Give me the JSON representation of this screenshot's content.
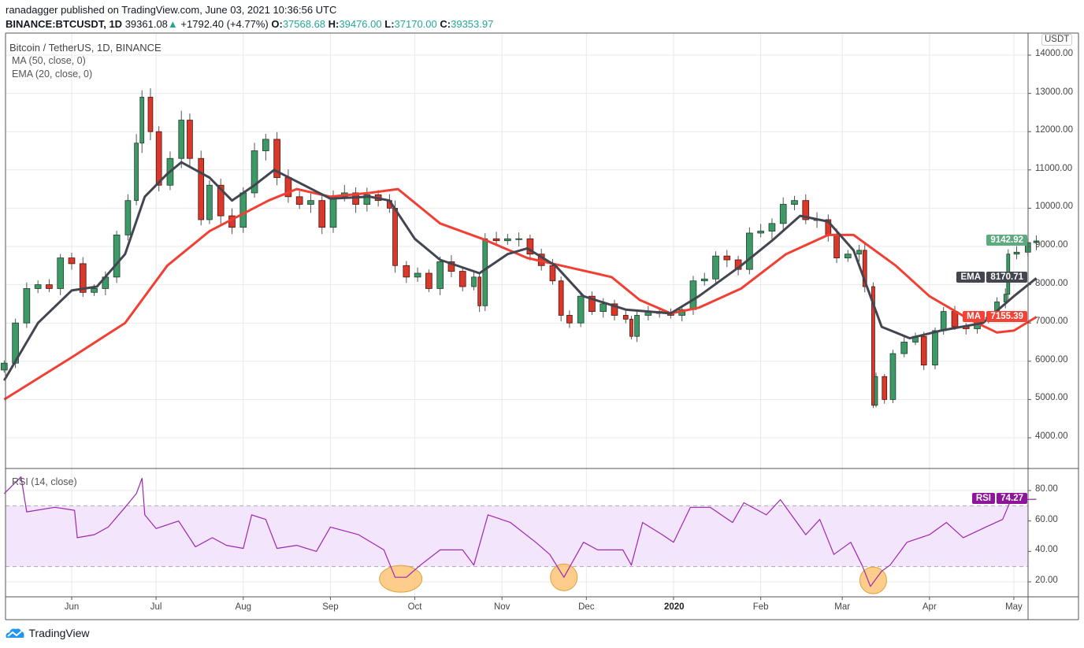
{
  "header": {
    "publisher_line": "ranadagger published on TradingView.com, June 03, 2021 10:36:56 UTC",
    "symbol": "BINANCE:BTCUSDT, 1D",
    "last": "39361.08",
    "change": "+1792.40 (+4.77%)",
    "open_label": "O:",
    "open": "37568.68",
    "high_label": "H:",
    "high": "39476.00",
    "low_label": "L:",
    "low": "37170.00",
    "close_label": "C:",
    "close": "39353.97",
    "up_icon": "triangle-up-icon"
  },
  "legend": {
    "title": "Bitcoin / TetherUS, 1D, BINANCE",
    "ma": "MA (50, close, 0)",
    "ema": "EMA (20, close, 0)",
    "rsi": "RSI (14, close)"
  },
  "price_axis": {
    "currency": "USDT",
    "ticks": [
      "14000.00",
      "13000.00",
      "12000.00",
      "11000.00",
      "10000.00",
      "9000.00",
      "8000.00",
      "7000.00",
      "6000.00",
      "5000.00",
      "4000.00"
    ]
  },
  "rsi_axis": {
    "ticks": [
      "80.00",
      "60.00",
      "40.00",
      "20.00"
    ]
  },
  "time_axis": {
    "labels": [
      {
        "date": "2019-06-01",
        "text": "Jun"
      },
      {
        "date": "2019-07-01",
        "text": "Jul"
      },
      {
        "date": "2019-08-01",
        "text": "Aug"
      },
      {
        "date": "2019-09-01",
        "text": "Sep"
      },
      {
        "date": "2019-10-01",
        "text": "Oct"
      },
      {
        "date": "2019-11-01",
        "text": "Nov"
      },
      {
        "date": "2019-12-01",
        "text": "Dec"
      },
      {
        "date": "2020-01-01",
        "text": "2020",
        "bold": true
      },
      {
        "date": "2020-02-01",
        "text": "Feb"
      },
      {
        "date": "2020-03-01",
        "text": "Mar"
      },
      {
        "date": "2020-04-01",
        "text": "Apr"
      },
      {
        "date": "2020-05-01",
        "text": "May"
      }
    ]
  },
  "tags": {
    "price": {
      "value": "9142.92",
      "color": "#5fa981"
    },
    "ema": {
      "label": "EMA",
      "value": "8170.71",
      "color": "#434651"
    },
    "ma": {
      "label": "MA",
      "value": "7155.39",
      "color": "#f44336"
    },
    "rsi": {
      "label": "RSI",
      "value": "74.27",
      "color": "#8e1599"
    }
  },
  "footer": {
    "brand": "TradingView"
  },
  "colors": {
    "up": "#3d9a67",
    "down": "#d9382a",
    "ema": "#434651",
    "ma": "#f23f34",
    "rsi": "#9c27b0",
    "rsi_band": "#f3e5fc",
    "highlight": "#ffc477"
  },
  "chart_data": {
    "type": "candlestick",
    "price_range": [
      3400,
      14500
    ],
    "rsi_range": [
      10,
      90
    ],
    "rsi_band": [
      30,
      70
    ],
    "grid": true,
    "closes": [
      [
        "2019-05-08",
        5950
      ],
      [
        "2019-05-12",
        7000
      ],
      [
        "2019-05-16",
        7900
      ],
      [
        "2019-05-20",
        8000
      ],
      [
        "2019-05-24",
        7900
      ],
      [
        "2019-05-28",
        8700
      ],
      [
        "2019-06-01",
        8550
      ],
      [
        "2019-06-05",
        7800
      ],
      [
        "2019-06-09",
        7900
      ],
      [
        "2019-06-13",
        8200
      ],
      [
        "2019-06-17",
        9300
      ],
      [
        "2019-06-21",
        10200
      ],
      [
        "2019-06-24",
        11700
      ],
      [
        "2019-06-26",
        12900
      ],
      [
        "2019-06-29",
        12000
      ],
      [
        "2019-07-02",
        10600
      ],
      [
        "2019-07-06",
        11300
      ],
      [
        "2019-07-10",
        12300
      ],
      [
        "2019-07-13",
        11300
      ],
      [
        "2019-07-17",
        9700
      ],
      [
        "2019-07-20",
        10600
      ],
      [
        "2019-07-24",
        9800
      ],
      [
        "2019-07-28",
        9500
      ],
      [
        "2019-08-01",
        10400
      ],
      [
        "2019-08-05",
        11500
      ],
      [
        "2019-08-09",
        11800
      ],
      [
        "2019-08-13",
        10800
      ],
      [
        "2019-08-17",
        10300
      ],
      [
        "2019-08-21",
        10100
      ],
      [
        "2019-08-25",
        10200
      ],
      [
        "2019-08-29",
        9500
      ],
      [
        "2019-09-02",
        10300
      ],
      [
        "2019-09-06",
        10400
      ],
      [
        "2019-09-10",
        10100
      ],
      [
        "2019-09-14",
        10350
      ],
      [
        "2019-09-18",
        10200
      ],
      [
        "2019-09-22",
        10000
      ],
      [
        "2019-09-24",
        8500
      ],
      [
        "2019-09-28",
        8200
      ],
      [
        "2019-10-02",
        8300
      ],
      [
        "2019-10-06",
        7900
      ],
      [
        "2019-10-10",
        8600
      ],
      [
        "2019-10-14",
        8350
      ],
      [
        "2019-10-18",
        7950
      ],
      [
        "2019-10-22",
        8200
      ],
      [
        "2019-10-24",
        7450
      ],
      [
        "2019-10-26",
        9200
      ],
      [
        "2019-10-30",
        9150
      ],
      [
        "2019-11-03",
        9200
      ],
      [
        "2019-11-07",
        9200
      ],
      [
        "2019-11-11",
        8800
      ],
      [
        "2019-11-15",
        8500
      ],
      [
        "2019-11-19",
        8100
      ],
      [
        "2019-11-22",
        7200
      ],
      [
        "2019-11-25",
        7000
      ],
      [
        "2019-11-29",
        7700
      ],
      [
        "2019-12-03",
        7300
      ],
      [
        "2019-12-07",
        7500
      ],
      [
        "2019-12-11",
        7200
      ],
      [
        "2019-12-15",
        7100
      ],
      [
        "2019-12-17",
        6650
      ],
      [
        "2019-12-19",
        7200
      ],
      [
        "2019-12-23",
        7300
      ],
      [
        "2019-12-27",
        7250
      ],
      [
        "2019-12-31",
        7200
      ],
      [
        "2020-01-04",
        7350
      ],
      [
        "2020-01-08",
        8100
      ],
      [
        "2020-01-12",
        8150
      ],
      [
        "2020-01-16",
        8750
      ],
      [
        "2020-01-20",
        8650
      ],
      [
        "2020-01-24",
        8400
      ],
      [
        "2020-01-28",
        9350
      ],
      [
        "2020-02-01",
        9400
      ],
      [
        "2020-02-05",
        9600
      ],
      [
        "2020-02-09",
        10100
      ],
      [
        "2020-02-13",
        10200
      ],
      [
        "2020-02-17",
        9700
      ],
      [
        "2020-02-21",
        9700
      ],
      [
        "2020-02-25",
        9300
      ],
      [
        "2020-02-28",
        8700
      ],
      [
        "2020-03-03",
        8800
      ],
      [
        "2020-03-07",
        8900
      ],
      [
        "2020-03-09",
        7950
      ],
      [
        "2020-03-12",
        4850
      ],
      [
        "2020-03-13",
        5600
      ],
      [
        "2020-03-16",
        5000
      ],
      [
        "2020-03-19",
        6200
      ],
      [
        "2020-03-23",
        6500
      ],
      [
        "2020-03-27",
        6650
      ],
      [
        "2020-03-30",
        5900
      ],
      [
        "2020-04-03",
        6800
      ],
      [
        "2020-04-06",
        7300
      ],
      [
        "2020-04-10",
        6900
      ],
      [
        "2020-04-14",
        6850
      ],
      [
        "2020-04-18",
        7100
      ],
      [
        "2020-04-22",
        7150
      ],
      [
        "2020-04-25",
        7550
      ],
      [
        "2020-04-28",
        7750
      ],
      [
        "2020-04-29",
        8800
      ],
      [
        "2020-05-02",
        8850
      ],
      [
        "2020-05-06",
        9100
      ],
      [
        "2020-05-09",
        9142.92
      ]
    ],
    "ema20": [
      [
        "2019-05-08",
        5500
      ],
      [
        "2019-05-20",
        7000
      ],
      [
        "2019-06-01",
        7850
      ],
      [
        "2019-06-10",
        7950
      ],
      [
        "2019-06-20",
        8800
      ],
      [
        "2019-06-27",
        10300
      ],
      [
        "2019-07-05",
        10900
      ],
      [
        "2019-07-10",
        11200
      ],
      [
        "2019-07-20",
        10800
      ],
      [
        "2019-07-28",
        10200
      ],
      [
        "2019-08-05",
        10600
      ],
      [
        "2019-08-12",
        11000
      ],
      [
        "2019-08-20",
        10700
      ],
      [
        "2019-09-01",
        10250
      ],
      [
        "2019-09-15",
        10300
      ],
      [
        "2019-09-22",
        10200
      ],
      [
        "2019-10-01",
        9200
      ],
      [
        "2019-10-10",
        8650
      ],
      [
        "2019-10-24",
        8300
      ],
      [
        "2019-11-03",
        8800
      ],
      [
        "2019-11-10",
        8950
      ],
      [
        "2019-11-20",
        8500
      ],
      [
        "2019-11-30",
        7700
      ],
      [
        "2019-12-15",
        7350
      ],
      [
        "2019-12-31",
        7250
      ],
      [
        "2020-01-10",
        7700
      ],
      [
        "2020-01-25",
        8500
      ],
      [
        "2020-02-05",
        9150
      ],
      [
        "2020-02-15",
        9800
      ],
      [
        "2020-02-25",
        9650
      ],
      [
        "2020-03-05",
        8900
      ],
      [
        "2020-03-15",
        6900
      ],
      [
        "2020-03-25",
        6600
      ],
      [
        "2020-04-05",
        6800
      ],
      [
        "2020-04-20",
        7000
      ],
      [
        "2020-05-01",
        7700
      ],
      [
        "2020-05-09",
        8170.71
      ]
    ],
    "ma50": [
      [
        "2019-05-08",
        5000
      ],
      [
        "2019-06-01",
        6100
      ],
      [
        "2019-06-20",
        7000
      ],
      [
        "2019-07-05",
        8500
      ],
      [
        "2019-07-20",
        9400
      ],
      [
        "2019-08-10",
        10200
      ],
      [
        "2019-08-20",
        10500
      ],
      [
        "2019-09-01",
        10300
      ],
      [
        "2019-09-15",
        10400
      ],
      [
        "2019-09-25",
        10500
      ],
      [
        "2019-10-10",
        9600
      ],
      [
        "2019-10-25",
        9200
      ],
      [
        "2019-11-10",
        8700
      ],
      [
        "2019-11-25",
        8450
      ],
      [
        "2019-12-10",
        8200
      ],
      [
        "2019-12-20",
        7600
      ],
      [
        "2019-12-31",
        7250
      ],
      [
        "2020-01-10",
        7400
      ],
      [
        "2020-01-25",
        7900
      ],
      [
        "2020-02-10",
        8800
      ],
      [
        "2020-02-25",
        9300
      ],
      [
        "2020-03-05",
        9300
      ],
      [
        "2020-03-20",
        8500
      ],
      [
        "2020-04-01",
        7700
      ],
      [
        "2020-04-15",
        7100
      ],
      [
        "2020-04-25",
        6750
      ],
      [
        "2020-05-01",
        6800
      ],
      [
        "2020-05-09",
        7155.39
      ]
    ],
    "rsi14": [
      [
        "2019-05-08",
        78
      ],
      [
        "2019-05-14",
        89
      ],
      [
        "2019-05-16",
        66
      ],
      [
        "2019-05-26",
        69
      ],
      [
        "2019-06-02",
        67
      ],
      [
        "2019-06-03",
        49
      ],
      [
        "2019-06-09",
        51
      ],
      [
        "2019-06-14",
        56
      ],
      [
        "2019-06-20",
        69
      ],
      [
        "2019-06-24",
        78
      ],
      [
        "2019-06-26",
        88
      ],
      [
        "2019-06-27",
        64
      ],
      [
        "2019-07-01",
        55
      ],
      [
        "2019-07-09",
        60
      ],
      [
        "2019-07-15",
        43
      ],
      [
        "2019-07-21",
        49
      ],
      [
        "2019-07-26",
        44
      ],
      [
        "2019-08-01",
        42
      ],
      [
        "2019-08-04",
        64
      ],
      [
        "2019-08-09",
        61
      ],
      [
        "2019-08-13",
        42
      ],
      [
        "2019-08-20",
        44
      ],
      [
        "2019-08-27",
        40
      ],
      [
        "2019-09-01",
        56
      ],
      [
        "2019-09-11",
        51
      ],
      [
        "2019-09-20",
        41
      ],
      [
        "2019-09-24",
        23
      ],
      [
        "2019-09-28",
        23
      ],
      [
        "2019-10-03",
        31
      ],
      [
        "2019-10-10",
        41
      ],
      [
        "2019-10-18",
        41
      ],
      [
        "2019-10-22",
        31
      ],
      [
        "2019-10-27",
        64
      ],
      [
        "2019-11-04",
        59
      ],
      [
        "2019-11-13",
        46
      ],
      [
        "2019-11-18",
        38
      ],
      [
        "2019-11-23",
        23
      ],
      [
        "2019-11-30",
        46
      ],
      [
        "2019-12-05",
        41
      ],
      [
        "2019-12-14",
        41
      ],
      [
        "2019-12-17",
        31
      ],
      [
        "2019-12-21",
        59
      ],
      [
        "2019-12-28",
        51
      ],
      [
        "2020-01-01",
        46
      ],
      [
        "2020-01-07",
        69
      ],
      [
        "2020-01-14",
        69
      ],
      [
        "2020-01-22",
        59
      ],
      [
        "2020-01-26",
        72
      ],
      [
        "2020-02-03",
        64
      ],
      [
        "2020-02-08",
        74
      ],
      [
        "2020-02-17",
        51
      ],
      [
        "2020-02-22",
        61
      ],
      [
        "2020-02-27",
        38
      ],
      [
        "2020-03-04",
        46
      ],
      [
        "2020-03-08",
        31
      ],
      [
        "2020-03-11",
        17
      ],
      [
        "2020-03-15",
        27
      ],
      [
        "2020-03-18",
        31
      ],
      [
        "2020-03-24",
        46
      ],
      [
        "2020-04-01",
        51
      ],
      [
        "2020-04-07",
        59
      ],
      [
        "2020-04-13",
        49
      ],
      [
        "2020-04-21",
        56
      ],
      [
        "2020-04-27",
        61
      ],
      [
        "2020-04-30",
        74
      ],
      [
        "2020-05-09",
        74.27
      ]
    ],
    "rsi_highlights": [
      {
        "date": "2019-09-26",
        "rsi": 23
      },
      {
        "date": "2019-11-23",
        "rsi": 24
      },
      {
        "date": "2020-03-12",
        "rsi": 22
      }
    ]
  }
}
